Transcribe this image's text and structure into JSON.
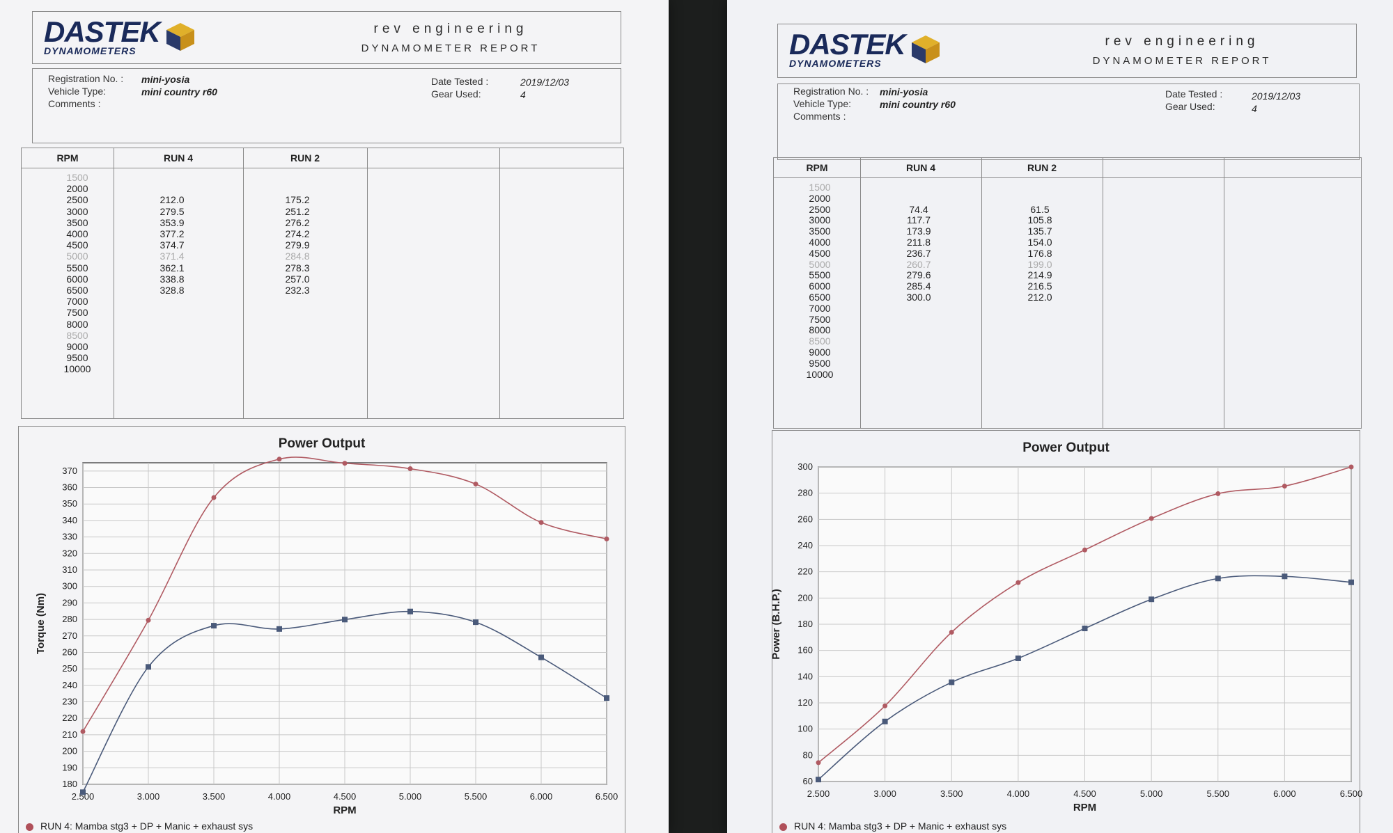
{
  "sheets": [
    {
      "id": "left",
      "company": "rev engineering",
      "report_title": "DYNAMOMETER REPORT",
      "logo": {
        "main": "DASTEK",
        "sub": "DYNAMOMETERS"
      },
      "info": {
        "registration_label": "Registration No. :",
        "registration": "mini-yosia",
        "vehicle_label": "Vehicle Type:",
        "vehicle": "mini country r60",
        "comments_label": "Comments :",
        "date_label": "Date Tested :",
        "date": "2019/12/03",
        "gear_label": "Gear Used:",
        "gear": "4"
      },
      "table": {
        "headers": [
          "RPM",
          "RUN 4",
          "RUN 2"
        ],
        "rpm": [
          "1500",
          "2000",
          "2500",
          "3000",
          "3500",
          "4000",
          "4500",
          "5000",
          "5500",
          "6000",
          "6500",
          "7000",
          "7500",
          "8000",
          "8500",
          "9000",
          "9500",
          "10000"
        ],
        "run4": [
          "",
          "",
          "212.0",
          "279.5",
          "353.9",
          "377.2",
          "374.7",
          "371.4",
          "362.1",
          "338.8",
          "328.8",
          "",
          "",
          "",
          "",
          "",
          "",
          ""
        ],
        "run2": [
          "",
          "",
          "175.2",
          "251.2",
          "276.2",
          "274.2",
          "279.9",
          "284.8",
          "278.3",
          "257.0",
          "232.3",
          "",
          "",
          "",
          "",
          "",
          "",
          ""
        ]
      },
      "chart_data": {
        "type": "line",
        "title": "Power Output",
        "xlabel": "RPM",
        "ylabel": "Torque (Nm)",
        "x": [
          2500,
          3000,
          3500,
          4000,
          4500,
          5000,
          5500,
          6000,
          6500
        ],
        "x_tick_labels": [
          "2.500",
          "3.000",
          "3.500",
          "4.000",
          "4.500",
          "5.000",
          "5.500",
          "6.000",
          "6.500"
        ],
        "xlim": [
          2500,
          6500
        ],
        "ylim": [
          180,
          375
        ],
        "y_ticks": [
          180,
          190,
          200,
          210,
          220,
          230,
          240,
          250,
          260,
          270,
          280,
          290,
          300,
          310,
          320,
          330,
          340,
          350,
          360,
          370
        ],
        "grid": true,
        "series": [
          {
            "name": "RUN 4: Mamba stg3 + DP + Manic + exhaust sys",
            "marker": "circle",
            "color": "#b05a62",
            "values": [
              212.0,
              279.5,
              353.9,
              377.2,
              374.7,
              371.4,
              362.1,
              338.8,
              328.8
            ]
          },
          {
            "name": "",
            "marker": "square",
            "color": "#4a5a7a",
            "values": [
              175.2,
              251.2,
              276.2,
              274.2,
              279.9,
              284.8,
              278.3,
              257.0,
              232.3
            ]
          }
        ]
      },
      "legend_text": "RUN 4: Mamba stg3 + DP + Manic + exhaust sys"
    },
    {
      "id": "right",
      "company": "rev engineering",
      "report_title": "DYNAMOMETER REPORT",
      "logo": {
        "main": "DASTEK",
        "sub": "DYNAMOMETERS"
      },
      "info": {
        "registration_label": "Registration No. :",
        "registration": "mini-yosia",
        "vehicle_label": "Vehicle Type:",
        "vehicle": "mini country r60",
        "comments_label": "Comments :",
        "date_label": "Date Tested :",
        "date": "2019/12/03",
        "gear_label": "Gear Used:",
        "gear": "4"
      },
      "table": {
        "headers": [
          "RPM",
          "RUN 4",
          "RUN 2"
        ],
        "rpm": [
          "1500",
          "2000",
          "2500",
          "3000",
          "3500",
          "4000",
          "4500",
          "5000",
          "5500",
          "6000",
          "6500",
          "7000",
          "7500",
          "8000",
          "8500",
          "9000",
          "9500",
          "10000"
        ],
        "run4": [
          "",
          "",
          "74.4",
          "117.7",
          "173.9",
          "211.8",
          "236.7",
          "260.7",
          "279.6",
          "285.4",
          "300.0",
          "",
          "",
          "",
          "",
          "",
          "",
          ""
        ],
        "run2": [
          "",
          "",
          "61.5",
          "105.8",
          "135.7",
          "154.0",
          "176.8",
          "199.0",
          "214.9",
          "216.5",
          "212.0",
          "",
          "",
          "",
          "",
          "",
          "",
          ""
        ]
      },
      "chart_data": {
        "type": "line",
        "title": "Power Output",
        "xlabel": "RPM",
        "ylabel": "Power (B.H.P.)",
        "x": [
          2500,
          3000,
          3500,
          4000,
          4500,
          5000,
          5500,
          6000,
          6500
        ],
        "x_tick_labels": [
          "2.500",
          "3.000",
          "3.500",
          "4.000",
          "4.500",
          "5.000",
          "5.500",
          "6.000",
          "6.500"
        ],
        "xlim": [
          2500,
          6500
        ],
        "ylim": [
          60,
          300
        ],
        "y_ticks": [
          60,
          80,
          100,
          120,
          140,
          160,
          180,
          200,
          220,
          240,
          260,
          280,
          300
        ],
        "grid": true,
        "series": [
          {
            "name": "RUN 4: Mamba stg3 + DP + Manic + exhaust sys",
            "marker": "circle",
            "color": "#b05a62",
            "values": [
              74.4,
              117.7,
              173.9,
              211.8,
              236.7,
              260.7,
              279.6,
              285.4,
              300.0
            ]
          },
          {
            "name": "",
            "marker": "square",
            "color": "#4a5a7a",
            "values": [
              61.5,
              105.8,
              135.7,
              154.0,
              176.8,
              199.0,
              214.9,
              216.5,
              212.0
            ]
          }
        ]
      },
      "legend_text": "RUN 4: Mamba stg3 + DP + Manic + exhaust sys"
    }
  ]
}
